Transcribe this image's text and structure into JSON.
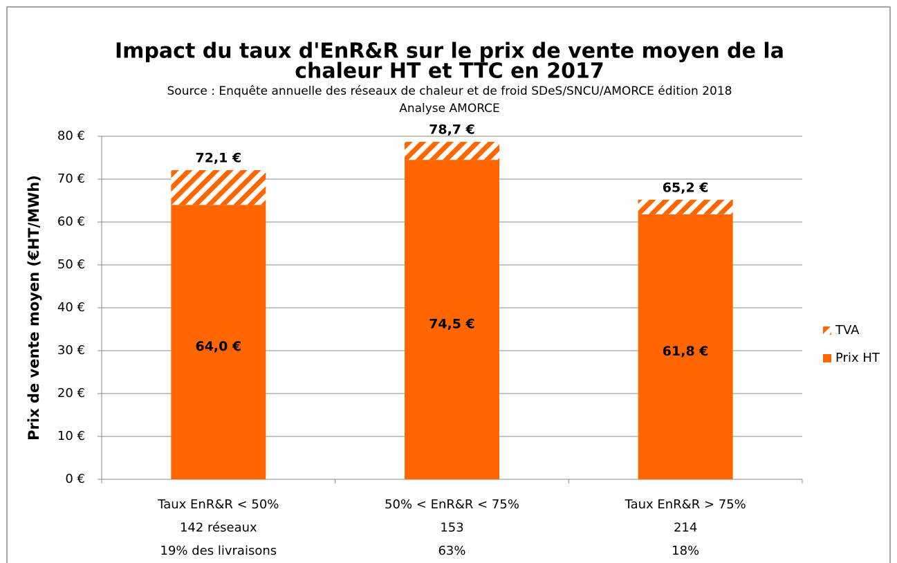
{
  "chart_data": {
    "type": "stacked_bar",
    "title": [
      "Impact du taux d'EnR&R sur le prix de vente moyen de la",
      "chaleur HT et TTC en 2017"
    ],
    "subtitle": [
      "Source : Enquête annuelle des réseaux de chaleur et de froid SDeS/SNCU/AMORCE édition 2018",
      "Analyse AMORCE"
    ],
    "y_label": "Prix de vente moyen (€HT/MWh)",
    "categories": [
      [
        "Taux EnR&R < 50%",
        "142 réseaux",
        "19% des livraisons"
      ],
      [
        "50% < EnR&R < 75%",
        "153",
        "63%"
      ],
      [
        "Taux EnR&R > 75%",
        "214",
        "18%"
      ]
    ],
    "series": [
      {
        "name": "Prix HT",
        "color": "#ff6600",
        "pattern": "solid",
        "values": [
          64.0,
          74.5,
          61.8
        ],
        "value_labels": [
          "64,0  €",
          "74,5  €",
          "61,8 €"
        ]
      },
      {
        "name": "TVA",
        "color": "#ff6600",
        "pattern": "hatch",
        "values": [
          8.1,
          4.2,
          3.4
        ]
      }
    ],
    "totals": {
      "values": [
        72.1,
        78.7,
        65.2
      ],
      "value_labels": [
        "72,1 €",
        "78,7 €",
        "65,2 €"
      ]
    },
    "ylim": [
      0,
      80
    ],
    "yticks": [
      {
        "value": 0,
        "label": "0 €"
      },
      {
        "value": 10,
        "label": "10 €"
      },
      {
        "value": 20,
        "label": "20 €"
      },
      {
        "value": 30,
        "label": "30 €"
      },
      {
        "value": 40,
        "label": "40 €"
      },
      {
        "value": 50,
        "label": "50 €"
      },
      {
        "value": 60,
        "label": "60 €"
      },
      {
        "value": 70,
        "label": "70 €"
      },
      {
        "value": 80,
        "label": "80 €"
      }
    ],
    "grid": true,
    "legend": "right"
  }
}
